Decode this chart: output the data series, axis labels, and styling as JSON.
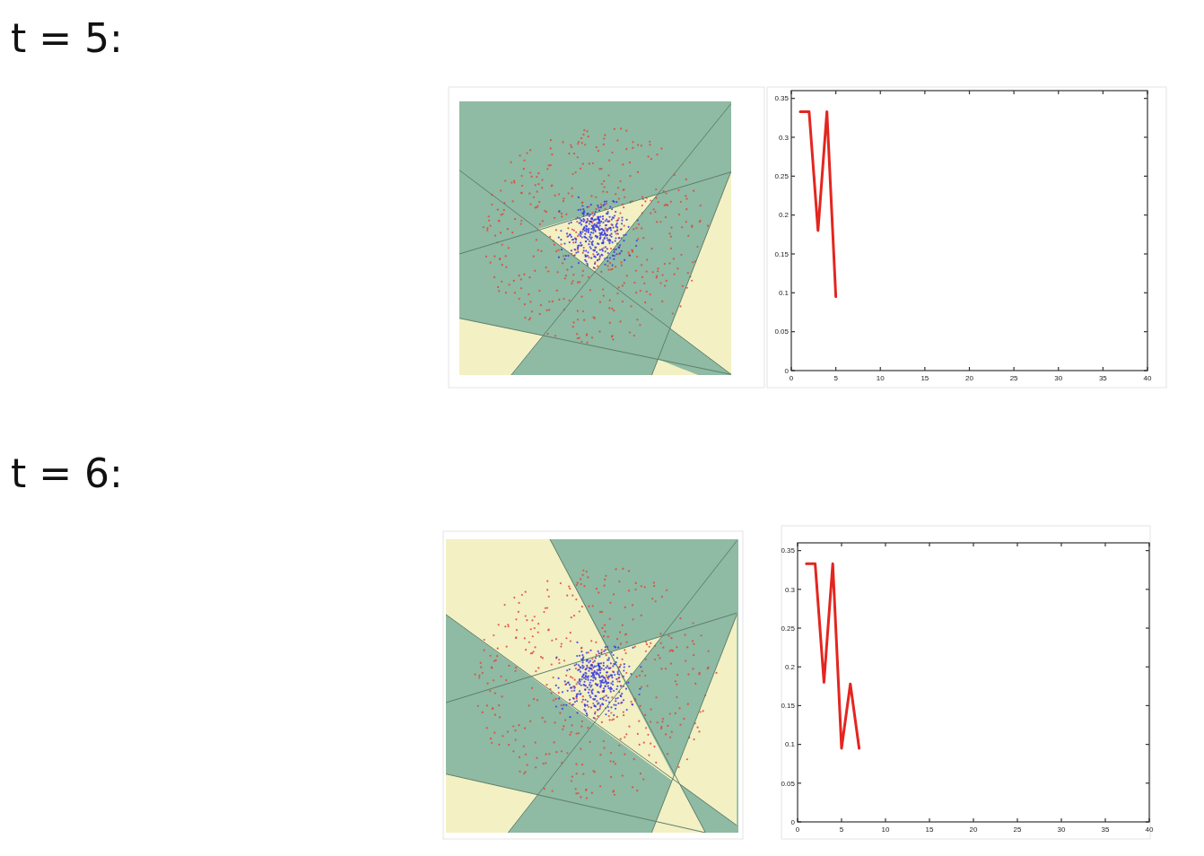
{
  "chart_data": [
    {
      "type": "other",
      "title": "t = 5:"
    },
    {
      "type": "line",
      "x": [
        1,
        2,
        3,
        4,
        5
      ],
      "series": [
        {
          "color": "#e3261f",
          "values": [
            0.333,
            0.333,
            0.18,
            0.333,
            0.095
          ]
        }
      ],
      "xlim": [
        0,
        40
      ],
      "xticks": [
        0,
        5,
        10,
        15,
        20,
        25,
        30,
        35,
        40
      ],
      "ylim": [
        0,
        0.36
      ],
      "yticks": [
        0,
        0.05,
        0.1,
        0.15,
        0.2,
        0.25,
        0.3,
        0.35
      ]
    },
    {
      "type": "other",
      "title": "t = 6:"
    },
    {
      "type": "line",
      "x": [
        1,
        2,
        3,
        4,
        5,
        6,
        7
      ],
      "series": [
        {
          "color": "#e3261f",
          "values": [
            0.333,
            0.333,
            0.18,
            0.333,
            0.095,
            0.178,
            0.095
          ]
        }
      ],
      "xlim": [
        0,
        40
      ],
      "xticks": [
        0,
        5,
        10,
        15,
        20,
        25,
        30,
        35,
        40
      ],
      "ylim": [
        0,
        0.36
      ],
      "yticks": [
        0,
        0.05,
        0.1,
        0.15,
        0.2,
        0.25,
        0.3,
        0.35
      ]
    }
  ]
}
